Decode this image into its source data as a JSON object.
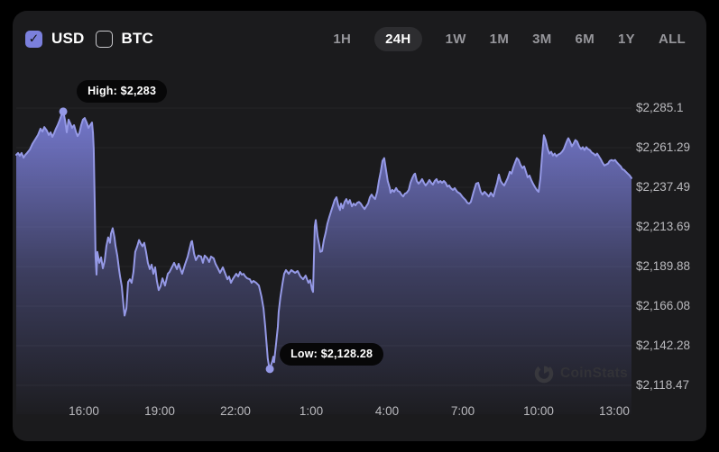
{
  "controls": {
    "currencies": [
      {
        "id": "usd",
        "label": "USD",
        "checked": true
      },
      {
        "id": "btc",
        "label": "BTC",
        "checked": false
      }
    ],
    "timeframes": [
      {
        "label": "1H",
        "selected": false
      },
      {
        "label": "24H",
        "selected": true
      },
      {
        "label": "1W",
        "selected": false
      },
      {
        "label": "1M",
        "selected": false
      },
      {
        "label": "3M",
        "selected": false
      },
      {
        "label": "6M",
        "selected": false
      },
      {
        "label": "1Y",
        "selected": false
      },
      {
        "label": "ALL",
        "selected": false
      }
    ]
  },
  "watermark": {
    "text": "CoinStats"
  },
  "chart_data": {
    "type": "area",
    "title": "24H price chart (USD)",
    "x_ticks": [
      "16:00",
      "19:00",
      "22:00",
      "1:00",
      "4:00",
      "7:00",
      "10:00",
      "13:00"
    ],
    "y_ticks": [
      "$2,285.1",
      "$2,261.29",
      "$2,237.49",
      "$2,213.69",
      "$2,189.88",
      "$2,166.08",
      "$2,142.28",
      "$2,118.47"
    ],
    "y_tick_values": [
      2285.1,
      2261.29,
      2237.49,
      2213.69,
      2189.88,
      2166.08,
      2142.28,
      2118.47
    ],
    "axis": {
      "hours_span": 24.36,
      "x_tick_hours": [
        2.68,
        5.68,
        8.68,
        11.68,
        14.68,
        17.68,
        20.68,
        23.68
      ],
      "grid": "horizontal"
    },
    "high": {
      "t": 1.86,
      "price": 2283.0,
      "label": "High: $2,283"
    },
    "low": {
      "t": 10.04,
      "price": 2128.28,
      "label": "Low: $2,128.28"
    },
    "colors": {
      "line": "#9599e6",
      "fill": "#7c80dc",
      "accent": "#7b80dd",
      "grid": "rgba(255,255,255,0.05)"
    },
    "points": [
      [
        0.0,
        2257.0
      ],
      [
        0.07,
        2258.1
      ],
      [
        0.14,
        2256.4
      ],
      [
        0.21,
        2258.1
      ],
      [
        0.29,
        2255.3
      ],
      [
        0.36,
        2257.0
      ],
      [
        0.43,
        2258.1
      ],
      [
        0.54,
        2260.2
      ],
      [
        0.64,
        2263.5
      ],
      [
        0.75,
        2266.2
      ],
      [
        0.86,
        2268.9
      ],
      [
        0.96,
        2272.7
      ],
      [
        1.04,
        2271.0
      ],
      [
        1.11,
        2273.7
      ],
      [
        1.21,
        2271.6
      ],
      [
        1.29,
        2268.9
      ],
      [
        1.36,
        2270.5
      ],
      [
        1.43,
        2267.8
      ],
      [
        1.5,
        2270.0
      ],
      [
        1.57,
        2272.7
      ],
      [
        1.64,
        2274.8
      ],
      [
        1.71,
        2277.5
      ],
      [
        1.79,
        2280.8
      ],
      [
        1.86,
        2283.0
      ],
      [
        1.93,
        2278.1
      ],
      [
        2.0,
        2270.5
      ],
      [
        2.07,
        2278.1
      ],
      [
        2.14,
        2275.9
      ],
      [
        2.21,
        2273.2
      ],
      [
        2.29,
        2274.8
      ],
      [
        2.36,
        2271.0
      ],
      [
        2.43,
        2268.3
      ],
      [
        2.5,
        2270.0
      ],
      [
        2.57,
        2274.8
      ],
      [
        2.64,
        2278.1
      ],
      [
        2.71,
        2279.1
      ],
      [
        2.79,
        2276.4
      ],
      [
        2.86,
        2273.2
      ],
      [
        2.93,
        2274.8
      ],
      [
        3.0,
        2276.4
      ],
      [
        3.04,
        2270.0
      ],
      [
        3.07,
        2260.5
      ],
      [
        3.11,
        2224.9
      ],
      [
        3.14,
        2195.8
      ],
      [
        3.18,
        2185.0
      ],
      [
        3.21,
        2198.7
      ],
      [
        3.29,
        2192.1
      ],
      [
        3.36,
        2195.4
      ],
      [
        3.43,
        2188.8
      ],
      [
        3.5,
        2193.2
      ],
      [
        3.57,
        2202.0
      ],
      [
        3.64,
        2207.4
      ],
      [
        3.71,
        2204.1
      ],
      [
        3.75,
        2209.6
      ],
      [
        3.82,
        2212.9
      ],
      [
        3.89,
        2207.4
      ],
      [
        3.93,
        2202.5
      ],
      [
        4.0,
        2196.5
      ],
      [
        4.07,
        2188.3
      ],
      [
        4.11,
        2183.9
      ],
      [
        4.18,
        2177.9
      ],
      [
        4.25,
        2165.8
      ],
      [
        4.29,
        2160.4
      ],
      [
        4.36,
        2164.7
      ],
      [
        4.43,
        2180.6
      ],
      [
        4.5,
        2182.2
      ],
      [
        4.57,
        2180.1
      ],
      [
        4.64,
        2186.6
      ],
      [
        4.71,
        2198.7
      ],
      [
        4.79,
        2202.0
      ],
      [
        4.86,
        2205.8
      ],
      [
        4.93,
        2203.6
      ],
      [
        5.0,
        2202.0
      ],
      [
        5.07,
        2204.1
      ],
      [
        5.14,
        2198.7
      ],
      [
        5.21,
        2192.1
      ],
      [
        5.29,
        2188.3
      ],
      [
        5.36,
        2191.0
      ],
      [
        5.43,
        2185.5
      ],
      [
        5.5,
        2189.4
      ],
      [
        5.57,
        2181.2
      ],
      [
        5.64,
        2175.7
      ],
      [
        5.71,
        2177.9
      ],
      [
        5.79,
        2182.8
      ],
      [
        5.89,
        2178.4
      ],
      [
        6.0,
        2185.5
      ],
      [
        6.07,
        2186.6
      ],
      [
        6.25,
        2192.1
      ],
      [
        6.36,
        2188.3
      ],
      [
        6.43,
        2191.5
      ],
      [
        6.57,
        2185.5
      ],
      [
        6.68,
        2191.0
      ],
      [
        6.79,
        2195.9
      ],
      [
        6.93,
        2204.7
      ],
      [
        6.96,
        2205.2
      ],
      [
        7.04,
        2197.6
      ],
      [
        7.11,
        2193.7
      ],
      [
        7.21,
        2196.5
      ],
      [
        7.32,
        2195.9
      ],
      [
        7.39,
        2192.1
      ],
      [
        7.46,
        2196.5
      ],
      [
        7.57,
        2194.8
      ],
      [
        7.64,
        2192.6
      ],
      [
        7.71,
        2195.9
      ],
      [
        7.82,
        2194.8
      ],
      [
        7.89,
        2191.5
      ],
      [
        8.0,
        2188.3
      ],
      [
        8.07,
        2186.1
      ],
      [
        8.18,
        2189.4
      ],
      [
        8.29,
        2185.0
      ],
      [
        8.36,
        2182.2
      ],
      [
        8.43,
        2183.9
      ],
      [
        8.5,
        2180.1
      ],
      [
        8.57,
        2182.2
      ],
      [
        8.64,
        2183.9
      ],
      [
        8.71,
        2185.5
      ],
      [
        8.79,
        2183.9
      ],
      [
        8.86,
        2186.6
      ],
      [
        8.93,
        2185.0
      ],
      [
        9.0,
        2185.5
      ],
      [
        9.07,
        2183.9
      ],
      [
        9.14,
        2182.8
      ],
      [
        9.25,
        2182.2
      ],
      [
        9.32,
        2180.1
      ],
      [
        9.39,
        2181.2
      ],
      [
        9.5,
        2180.1
      ],
      [
        9.61,
        2178.4
      ],
      [
        9.71,
        2171.9
      ],
      [
        9.79,
        2164.7
      ],
      [
        9.86,
        2153.8
      ],
      [
        9.93,
        2140.1
      ],
      [
        9.96,
        2134.6
      ],
      [
        10.0,
        2130.6
      ],
      [
        10.04,
        2128.28
      ],
      [
        10.11,
        2131.5
      ],
      [
        10.14,
        2133.0
      ],
      [
        10.18,
        2135.7
      ],
      [
        10.21,
        2132.4
      ],
      [
        10.29,
        2143.9
      ],
      [
        10.36,
        2153.8
      ],
      [
        10.39,
        2162.5
      ],
      [
        10.46,
        2171.3
      ],
      [
        10.54,
        2179.5
      ],
      [
        10.61,
        2185.5
      ],
      [
        10.68,
        2187.7
      ],
      [
        10.79,
        2185.5
      ],
      [
        10.89,
        2187.7
      ],
      [
        11.04,
        2186.1
      ],
      [
        11.14,
        2187.2
      ],
      [
        11.25,
        2183.9
      ],
      [
        11.36,
        2182.2
      ],
      [
        11.46,
        2184.4
      ],
      [
        11.57,
        2180.1
      ],
      [
        11.64,
        2181.7
      ],
      [
        11.71,
        2176.2
      ],
      [
        11.75,
        2174.6
      ],
      [
        11.82,
        2214.0
      ],
      [
        11.86,
        2217.8
      ],
      [
        11.93,
        2208.0
      ],
      [
        12.0,
        2202.5
      ],
      [
        12.04,
        2198.7
      ],
      [
        12.11,
        2199.2
      ],
      [
        12.18,
        2205.8
      ],
      [
        12.25,
        2210.2
      ],
      [
        12.32,
        2215.6
      ],
      [
        12.39,
        2219.4
      ],
      [
        12.46,
        2222.7
      ],
      [
        12.54,
        2226.6
      ],
      [
        12.61,
        2229.8
      ],
      [
        12.68,
        2231.5
      ],
      [
        12.75,
        2226.6
      ],
      [
        12.82,
        2223.8
      ],
      [
        12.86,
        2227.7
      ],
      [
        12.93,
        2224.9
      ],
      [
        13.0,
        2228.7
      ],
      [
        13.07,
        2230.4
      ],
      [
        13.14,
        2227.7
      ],
      [
        13.21,
        2229.8
      ],
      [
        13.29,
        2226.0
      ],
      [
        13.36,
        2227.7
      ],
      [
        13.43,
        2226.6
      ],
      [
        13.5,
        2228.2
      ],
      [
        13.57,
        2228.7
      ],
      [
        13.64,
        2227.7
      ],
      [
        13.71,
        2226.0
      ],
      [
        13.79,
        2224.4
      ],
      [
        13.86,
        2226.0
      ],
      [
        13.93,
        2227.7
      ],
      [
        14.0,
        2231.5
      ],
      [
        14.07,
        2233.1
      ],
      [
        14.14,
        2231.5
      ],
      [
        14.21,
        2230.4
      ],
      [
        14.29,
        2234.8
      ],
      [
        14.36,
        2241.3
      ],
      [
        14.43,
        2246.8
      ],
      [
        14.5,
        2253.4
      ],
      [
        14.57,
        2255.0
      ],
      [
        14.64,
        2247.9
      ],
      [
        14.71,
        2241.3
      ],
      [
        14.79,
        2237.0
      ],
      [
        14.82,
        2234.2
      ],
      [
        14.89,
        2235.9
      ],
      [
        14.96,
        2234.8
      ],
      [
        15.04,
        2237.0
      ],
      [
        15.11,
        2235.3
      ],
      [
        15.18,
        2234.8
      ],
      [
        15.25,
        2233.1
      ],
      [
        15.32,
        2232.0
      ],
      [
        15.39,
        2233.7
      ],
      [
        15.46,
        2234.2
      ],
      [
        15.54,
        2235.9
      ],
      [
        15.61,
        2240.2
      ],
      [
        15.68,
        2243.0
      ],
      [
        15.75,
        2245.1
      ],
      [
        15.79,
        2245.7
      ],
      [
        15.86,
        2241.3
      ],
      [
        15.93,
        2239.7
      ],
      [
        16.0,
        2240.8
      ],
      [
        16.07,
        2242.4
      ],
      [
        16.14,
        2240.2
      ],
      [
        16.21,
        2238.6
      ],
      [
        16.29,
        2240.2
      ],
      [
        16.36,
        2241.9
      ],
      [
        16.43,
        2240.2
      ],
      [
        16.5,
        2239.1
      ],
      [
        16.57,
        2241.3
      ],
      [
        16.64,
        2242.4
      ],
      [
        16.71,
        2240.2
      ],
      [
        16.79,
        2241.3
      ],
      [
        16.86,
        2240.2
      ],
      [
        16.93,
        2241.3
      ],
      [
        17.0,
        2240.2
      ],
      [
        17.07,
        2238.0
      ],
      [
        17.14,
        2238.6
      ],
      [
        17.21,
        2236.9
      ],
      [
        17.29,
        2235.9
      ],
      [
        17.36,
        2237.0
      ],
      [
        17.46,
        2234.8
      ],
      [
        17.57,
        2233.7
      ],
      [
        17.68,
        2231.5
      ],
      [
        17.79,
        2229.8
      ],
      [
        17.86,
        2228.2
      ],
      [
        17.93,
        2227.7
      ],
      [
        18.0,
        2228.7
      ],
      [
        18.11,
        2234.8
      ],
      [
        18.21,
        2239.7
      ],
      [
        18.29,
        2240.2
      ],
      [
        18.39,
        2234.8
      ],
      [
        18.46,
        2233.1
      ],
      [
        18.54,
        2234.8
      ],
      [
        18.64,
        2233.1
      ],
      [
        18.71,
        2232.0
      ],
      [
        18.79,
        2234.2
      ],
      [
        18.89,
        2232.0
      ],
      [
        18.96,
        2235.9
      ],
      [
        19.04,
        2240.2
      ],
      [
        19.11,
        2245.1
      ],
      [
        19.18,
        2241.3
      ],
      [
        19.25,
        2239.7
      ],
      [
        19.32,
        2238.6
      ],
      [
        19.39,
        2240.8
      ],
      [
        19.46,
        2243.0
      ],
      [
        19.54,
        2246.8
      ],
      [
        19.61,
        2245.7
      ],
      [
        19.68,
        2249.5
      ],
      [
        19.75,
        2252.3
      ],
      [
        19.82,
        2255.0
      ],
      [
        19.89,
        2253.9
      ],
      [
        19.96,
        2251.2
      ],
      [
        20.04,
        2249.0
      ],
      [
        20.11,
        2250.1
      ],
      [
        20.18,
        2246.8
      ],
      [
        20.25,
        2243.5
      ],
      [
        20.32,
        2244.6
      ],
      [
        20.39,
        2241.9
      ],
      [
        20.46,
        2239.7
      ],
      [
        20.54,
        2237.5
      ],
      [
        20.61,
        2235.9
      ],
      [
        20.68,
        2234.8
      ],
      [
        20.75,
        2242.4
      ],
      [
        20.82,
        2256.6
      ],
      [
        20.89,
        2268.7
      ],
      [
        20.96,
        2265.9
      ],
      [
        21.04,
        2260.5
      ],
      [
        21.11,
        2257.7
      ],
      [
        21.18,
        2258.8
      ],
      [
        21.25,
        2256.6
      ],
      [
        21.32,
        2257.7
      ],
      [
        21.39,
        2256.1
      ],
      [
        21.46,
        2257.2
      ],
      [
        21.54,
        2257.7
      ],
      [
        21.61,
        2258.8
      ],
      [
        21.68,
        2260.5
      ],
      [
        21.75,
        2263.2
      ],
      [
        21.82,
        2265.9
      ],
      [
        21.86,
        2267.0
      ],
      [
        21.93,
        2264.9
      ],
      [
        22.0,
        2262.1
      ],
      [
        22.07,
        2263.8
      ],
      [
        22.14,
        2265.9
      ],
      [
        22.21,
        2264.9
      ],
      [
        22.29,
        2262.1
      ],
      [
        22.36,
        2260.5
      ],
      [
        22.43,
        2261.6
      ],
      [
        22.5,
        2259.9
      ],
      [
        22.57,
        2261.6
      ],
      [
        22.64,
        2260.5
      ],
      [
        22.71,
        2259.9
      ],
      [
        22.79,
        2258.3
      ],
      [
        22.86,
        2257.7
      ],
      [
        22.93,
        2256.6
      ],
      [
        23.0,
        2257.7
      ],
      [
        23.07,
        2256.1
      ],
      [
        23.14,
        2254.5
      ],
      [
        23.21,
        2252.3
      ],
      [
        23.29,
        2250.6
      ],
      [
        23.36,
        2251.2
      ],
      [
        23.43,
        2251.7
      ],
      [
        23.5,
        2253.4
      ],
      [
        23.57,
        2253.9
      ],
      [
        23.64,
        2253.4
      ],
      [
        23.71,
        2253.9
      ],
      [
        23.79,
        2252.3
      ],
      [
        23.86,
        2251.2
      ],
      [
        23.93,
        2250.1
      ],
      [
        24.0,
        2248.4
      ],
      [
        24.07,
        2247.9
      ],
      [
        24.14,
        2246.8
      ],
      [
        24.21,
        2245.7
      ],
      [
        24.29,
        2244.6
      ],
      [
        24.36,
        2243.0
      ]
    ]
  }
}
